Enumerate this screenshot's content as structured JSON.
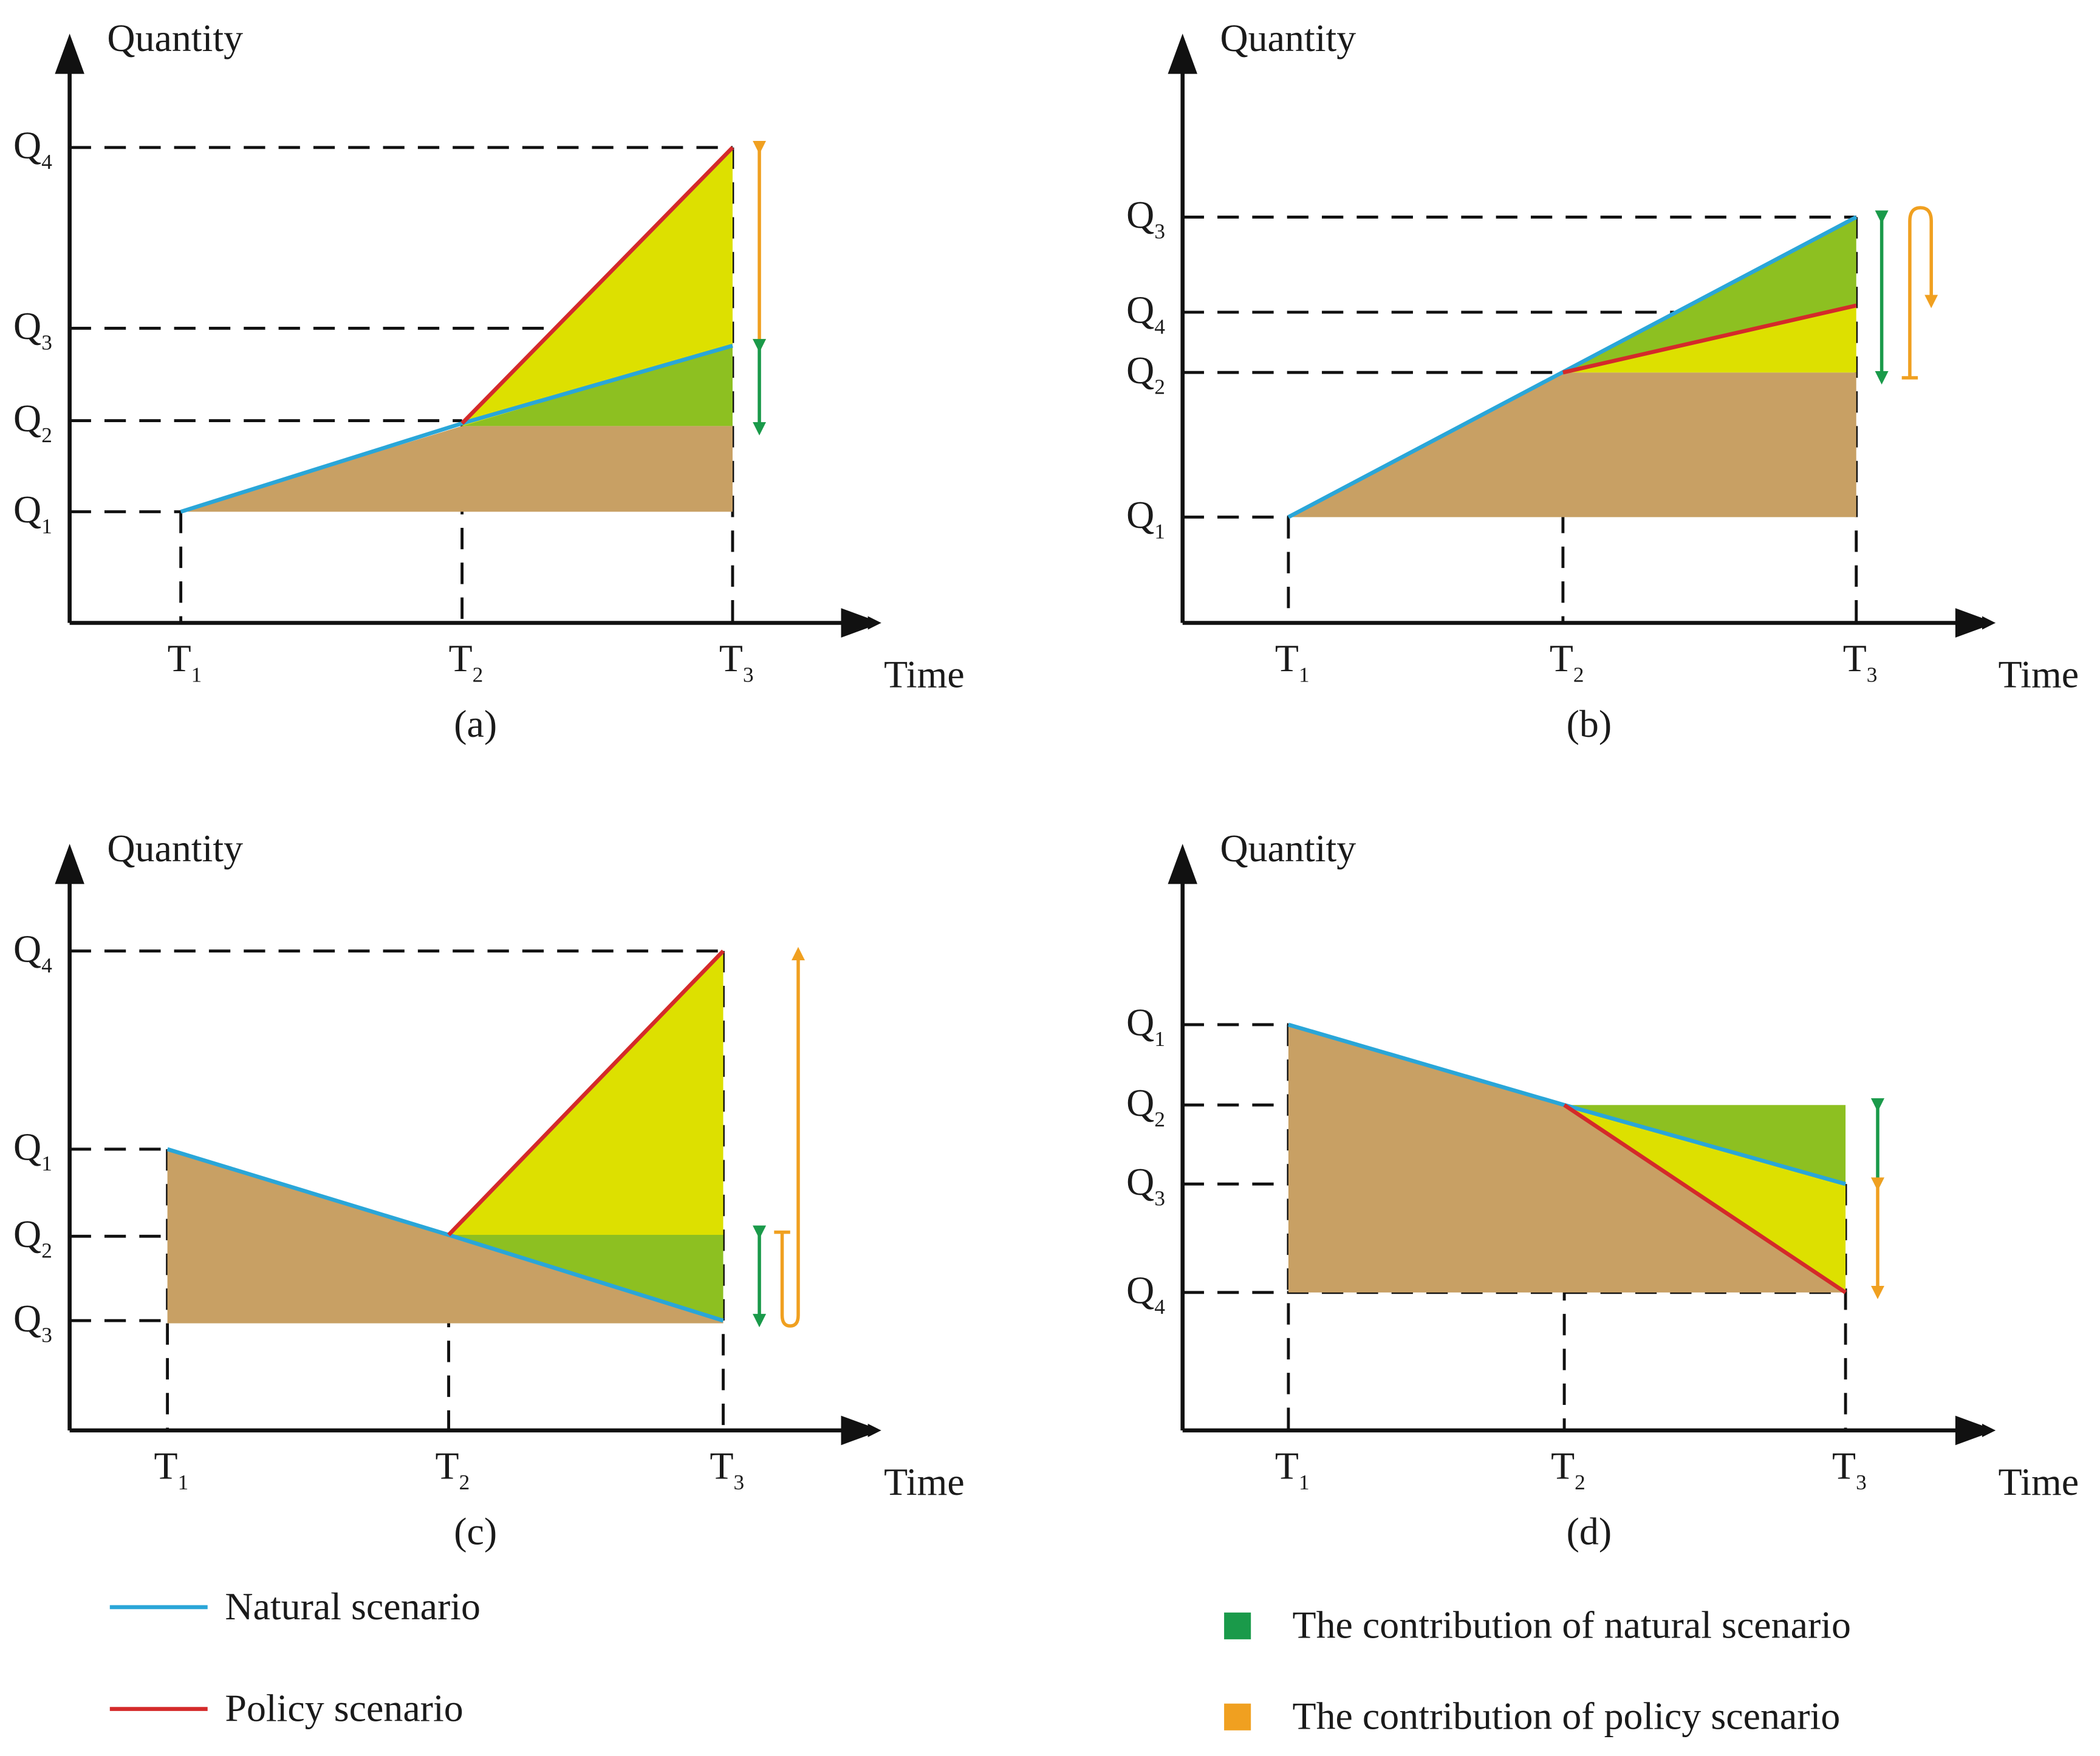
{
  "panels": [
    {
      "label": "(a)",
      "y_axis_label": "Quantity",
      "x_axis_label": "Time",
      "q_ticks": [
        {
          "base": "Q",
          "sub": "4"
        },
        {
          "base": "Q",
          "sub": "3"
        },
        {
          "base": "Q",
          "sub": "2"
        },
        {
          "base": "Q",
          "sub": "1"
        }
      ],
      "t_ticks": [
        {
          "base": "T",
          "sub": "1"
        },
        {
          "base": "T",
          "sub": "2"
        },
        {
          "base": "T",
          "sub": "3"
        }
      ]
    },
    {
      "label": "(b)",
      "y_axis_label": "Quantity",
      "x_axis_label": "Time",
      "q_ticks": [
        {
          "base": "Q",
          "sub": "3"
        },
        {
          "base": "Q",
          "sub": "4"
        },
        {
          "base": "Q",
          "sub": "2"
        },
        {
          "base": "Q",
          "sub": "1"
        }
      ],
      "t_ticks": [
        {
          "base": "T",
          "sub": "1"
        },
        {
          "base": "T",
          "sub": "2"
        },
        {
          "base": "T",
          "sub": "3"
        }
      ]
    },
    {
      "label": "(c)",
      "y_axis_label": "Quantity",
      "x_axis_label": "Time",
      "q_ticks": [
        {
          "base": "Q",
          "sub": "4"
        },
        {
          "base": "Q",
          "sub": "1"
        },
        {
          "base": "Q",
          "sub": "2"
        },
        {
          "base": "Q",
          "sub": "3"
        }
      ],
      "t_ticks": [
        {
          "base": "T",
          "sub": "1"
        },
        {
          "base": "T",
          "sub": "2"
        },
        {
          "base": "T",
          "sub": "3"
        }
      ]
    },
    {
      "label": "(d)",
      "y_axis_label": "Quantity",
      "x_axis_label": "Time",
      "q_ticks": [
        {
          "base": "Q",
          "sub": "1"
        },
        {
          "base": "Q",
          "sub": "2"
        },
        {
          "base": "Q",
          "sub": "3"
        },
        {
          "base": "Q",
          "sub": "4"
        }
      ],
      "t_ticks": [
        {
          "base": "T",
          "sub": "1"
        },
        {
          "base": "T",
          "sub": "2"
        },
        {
          "base": "T",
          "sub": "3"
        }
      ]
    }
  ],
  "legend": {
    "lines": [
      {
        "label": "Natural scenario",
        "color": "#2aa6d8"
      },
      {
        "label": "Policy scenario",
        "color": "#d42a2a"
      }
    ],
    "patches": [
      {
        "label": "The contribution of natural scenario",
        "color": "#1a9a4a"
      },
      {
        "label": "The contribution of policy scenario",
        "color": "#f0a020"
      }
    ]
  }
}
